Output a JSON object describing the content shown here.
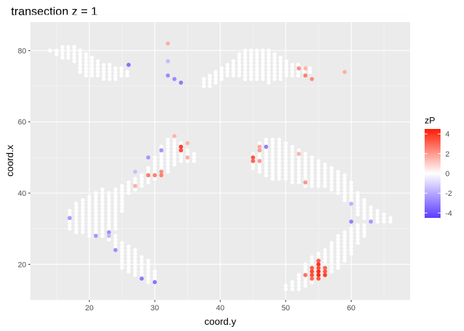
{
  "chart_data": {
    "type": "scatter",
    "title": "transection z = 1",
    "xlabel": "coord.y",
    "ylabel": "coord.x",
    "xlim": [
      11,
      69
    ],
    "ylim": [
      10,
      88
    ],
    "xticks": [
      20,
      30,
      40,
      50,
      60
    ],
    "yticks": [
      20,
      40,
      60,
      80
    ],
    "grid": true,
    "legend": {
      "title": "zP",
      "position": "right",
      "ticks": [
        4,
        2,
        0,
        -2,
        -4
      ],
      "range": [
        -4.5,
        4.5
      ],
      "colors": {
        "low": "#5b3cff",
        "mid": "#ffffff",
        "high": "#ff1a00"
      }
    },
    "background_regions": [
      {
        "name": "upper-left lobe",
        "cols": [
          [
            14,
            80,
            80
          ],
          [
            15,
            79,
            80
          ],
          [
            15.9,
            78,
            81
          ],
          [
            16.8,
            78,
            81
          ],
          [
            17.7,
            77,
            81
          ],
          [
            18.6,
            74,
            80
          ],
          [
            19.5,
            73,
            79
          ],
          [
            20.4,
            73,
            78
          ],
          [
            21.3,
            73,
            77
          ],
          [
            22.2,
            72,
            76
          ],
          [
            23.1,
            72,
            76
          ],
          [
            24,
            72,
            75
          ],
          [
            24.9,
            73,
            75
          ],
          [
            25.8,
            73,
            74
          ]
        ],
        "shift": [
          0,
          0
        ]
      },
      {
        "name": "upper-right lobe",
        "cols": [
          [
            37.5,
            70,
            72
          ],
          [
            38.4,
            70,
            73
          ],
          [
            39.3,
            71,
            74
          ],
          [
            40.2,
            72,
            75
          ],
          [
            41.1,
            73,
            76
          ],
          [
            42,
            73,
            77
          ],
          [
            42.9,
            73,
            79
          ],
          [
            43.8,
            72,
            80
          ],
          [
            44.7,
            72,
            80
          ],
          [
            45.6,
            72,
            80
          ],
          [
            46.5,
            72,
            80
          ],
          [
            47.4,
            71,
            80
          ],
          [
            48.3,
            72,
            79
          ],
          [
            49.2,
            72,
            78
          ],
          [
            50.1,
            73,
            77
          ],
          [
            51,
            73,
            76
          ],
          [
            51.9,
            73,
            76
          ],
          [
            52.8,
            74,
            75
          ],
          [
            53.7,
            74,
            75
          ]
        ],
        "shift": [
          0,
          0
        ]
      },
      {
        "name": "middle-left band",
        "cols": [
          [
            17,
            30,
            35
          ],
          [
            18,
            29,
            37
          ],
          [
            19,
            29,
            38
          ],
          [
            20,
            28,
            39
          ],
          [
            21,
            28,
            40
          ],
          [
            22,
            28,
            41
          ],
          [
            23,
            27,
            40
          ],
          [
            24,
            30,
            41
          ],
          [
            25,
            35,
            42
          ],
          [
            26,
            40,
            43
          ],
          [
            27,
            41,
            44
          ],
          [
            28,
            42,
            45
          ],
          [
            29,
            43,
            47
          ],
          [
            30,
            44,
            50
          ],
          [
            31,
            45,
            53
          ],
          [
            32,
            46,
            55
          ],
          [
            33,
            48,
            55
          ],
          [
            34,
            49,
            54
          ],
          [
            35,
            49,
            52
          ],
          [
            36,
            49,
            51
          ]
        ],
        "shift": [
          0,
          0
        ]
      },
      {
        "name": "middle-right band",
        "cols": [
          [
            45,
            47,
            51
          ],
          [
            46,
            46,
            54
          ],
          [
            47,
            45,
            55
          ],
          [
            48,
            44,
            55
          ],
          [
            49,
            44,
            55
          ],
          [
            50,
            44,
            54
          ],
          [
            51,
            43,
            53
          ],
          [
            52,
            43,
            52
          ],
          [
            53,
            42,
            51
          ],
          [
            54,
            42,
            50
          ],
          [
            55,
            42,
            49
          ],
          [
            56,
            42,
            48
          ],
          [
            57,
            41,
            47
          ],
          [
            58,
            40,
            46
          ],
          [
            59,
            38,
            45
          ],
          [
            60,
            37,
            43
          ],
          [
            61,
            34,
            40
          ],
          [
            62,
            33,
            38
          ],
          [
            63,
            32,
            36
          ],
          [
            64,
            32,
            35
          ],
          [
            65,
            32,
            34
          ],
          [
            66,
            32,
            33
          ]
        ],
        "shift": [
          0,
          0
        ]
      },
      {
        "name": "lower-left arm",
        "cols": [
          [
            22,
            28,
            29
          ],
          [
            23,
            27,
            29
          ],
          [
            24,
            25,
            28
          ],
          [
            25,
            19,
            26
          ],
          [
            26,
            18,
            25
          ],
          [
            27,
            17,
            24
          ],
          [
            28,
            16,
            22
          ],
          [
            29,
            15,
            21
          ],
          [
            30,
            15,
            18
          ]
        ],
        "shift": [
          0,
          0
        ]
      },
      {
        "name": "lower-right arm",
        "cols": [
          [
            50,
            13,
            14
          ],
          [
            51,
            13,
            15
          ],
          [
            52,
            13,
            17
          ],
          [
            53,
            14,
            20
          ],
          [
            54,
            15,
            22
          ],
          [
            55,
            16,
            23
          ],
          [
            56,
            17,
            24
          ],
          [
            57,
            18,
            26
          ],
          [
            58,
            19,
            28
          ],
          [
            59,
            21,
            29
          ],
          [
            60,
            23,
            30
          ],
          [
            61,
            26,
            31
          ],
          [
            62,
            28,
            31
          ]
        ],
        "shift": [
          0,
          0
        ]
      }
    ],
    "highlight_points": [
      {
        "x": 32,
        "y": 82,
        "z": 1.6
      },
      {
        "x": 26,
        "y": 76,
        "z": -3.3
      },
      {
        "x": 32,
        "y": 77,
        "z": -1.6
      },
      {
        "x": 32,
        "y": 73,
        "z": -2.7
      },
      {
        "x": 33,
        "y": 72,
        "z": -2.7
      },
      {
        "x": 34,
        "y": 71,
        "z": -3.1
      },
      {
        "x": 52,
        "y": 75,
        "z": 2.2
      },
      {
        "x": 53,
        "y": 75,
        "z": 1.5
      },
      {
        "x": 53,
        "y": 73,
        "z": 2.5
      },
      {
        "x": 54,
        "y": 72,
        "z": 2.3
      },
      {
        "x": 59,
        "y": 74,
        "z": 1.6
      },
      {
        "x": 33,
        "y": 56,
        "z": 1.5
      },
      {
        "x": 35,
        "y": 54,
        "z": 1.5
      },
      {
        "x": 34,
        "y": 53,
        "z": 3.8
      },
      {
        "x": 34,
        "y": 52,
        "z": 3.5
      },
      {
        "x": 31,
        "y": 52,
        "z": -2.5
      },
      {
        "x": 35,
        "y": 50,
        "z": 1.6
      },
      {
        "x": 29,
        "y": 50,
        "z": -2.4
      },
      {
        "x": 27,
        "y": 46,
        "z": -1.5
      },
      {
        "x": 31,
        "y": 46,
        "z": 2.3
      },
      {
        "x": 29,
        "y": 45,
        "z": 2.6
      },
      {
        "x": 30,
        "y": 45,
        "z": 2.5
      },
      {
        "x": 31,
        "y": 45,
        "z": 2.5
      },
      {
        "x": 27,
        "y": 42,
        "z": 1.6
      },
      {
        "x": 45,
        "y": 50,
        "z": 3.4
      },
      {
        "x": 45,
        "y": 49,
        "z": 3.0
      },
      {
        "x": 46,
        "y": 49,
        "z": 2.0
      },
      {
        "x": 46,
        "y": 52,
        "z": 1.9
      },
      {
        "x": 46,
        "y": 53,
        "z": 1.7
      },
      {
        "x": 47,
        "y": 53,
        "z": -3.0
      },
      {
        "x": 52,
        "y": 51,
        "z": 1.5
      },
      {
        "x": 53,
        "y": 43,
        "z": 2.1
      },
      {
        "x": 60,
        "y": 37,
        "z": -1.8
      },
      {
        "x": 60,
        "y": 32,
        "z": -2.9
      },
      {
        "x": 63,
        "y": 32,
        "z": -2.4
      },
      {
        "x": 17,
        "y": 33,
        "z": -2.4
      },
      {
        "x": 21,
        "y": 28,
        "z": -2.4
      },
      {
        "x": 23,
        "y": 29,
        "z": -2.6
      },
      {
        "x": 23,
        "y": 28,
        "z": -1.7
      },
      {
        "x": 24,
        "y": 24,
        "z": -2.6
      },
      {
        "x": 28,
        "y": 16,
        "z": -3.1
      },
      {
        "x": 30,
        "y": 15,
        "z": -3.2
      },
      {
        "x": 55,
        "y": 21,
        "z": 3.2
      },
      {
        "x": 55,
        "y": 20,
        "z": 4.0
      },
      {
        "x": 54,
        "y": 19,
        "z": 3.2
      },
      {
        "x": 55,
        "y": 19,
        "z": 3.5
      },
      {
        "x": 56,
        "y": 19,
        "z": 3.0
      },
      {
        "x": 54,
        "y": 18,
        "z": 3.6
      },
      {
        "x": 55,
        "y": 18,
        "z": 4.1
      },
      {
        "x": 56,
        "y": 18,
        "z": 3.3
      },
      {
        "x": 53,
        "y": 17,
        "z": 2.8
      },
      {
        "x": 54,
        "y": 17,
        "z": 3.5
      },
      {
        "x": 55,
        "y": 17,
        "z": 4.2
      },
      {
        "x": 56,
        "y": 17,
        "z": 3.8
      },
      {
        "x": 54,
        "y": 16,
        "z": 3.0
      },
      {
        "x": 55,
        "y": 16,
        "z": 3.3
      }
    ]
  }
}
